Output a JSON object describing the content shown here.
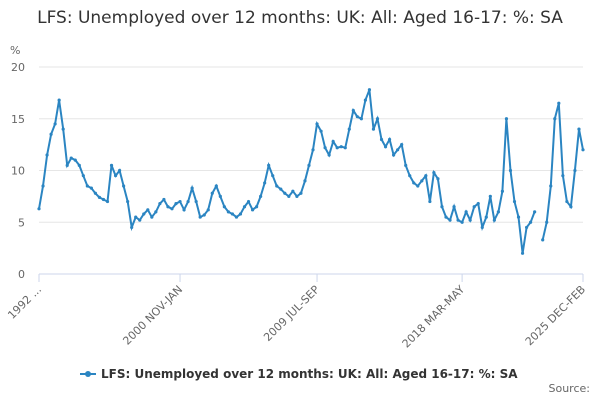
{
  "chart_data": {
    "type": "line",
    "title": "LFS: Unemployed over 12 months: UK: All: Aged 16-17: %: SA",
    "y_label": "%",
    "source": "Source:",
    "categories": [
      "1992 ...",
      null,
      null,
      null,
      null,
      null,
      null,
      null,
      null,
      null,
      null,
      null,
      null,
      null,
      null,
      null,
      null,
      null,
      null,
      null,
      null,
      null,
      null,
      null,
      null,
      null,
      null,
      null,
      null,
      null,
      null,
      null,
      null,
      null,
      null,
      "2000 NOV-JAN",
      null,
      null,
      null,
      null,
      null,
      null,
      null,
      null,
      null,
      null,
      null,
      null,
      null,
      null,
      null,
      null,
      null,
      null,
      null,
      null,
      null,
      null,
      null,
      null,
      null,
      null,
      null,
      null,
      null,
      null,
      null,
      null,
      null,
      "2009 JUL-SEP",
      null,
      null,
      null,
      null,
      null,
      null,
      null,
      null,
      null,
      null,
      null,
      null,
      null,
      null,
      null,
      null,
      null,
      null,
      null,
      null,
      null,
      null,
      null,
      null,
      null,
      null,
      null,
      null,
      null,
      null,
      null,
      null,
      null,
      null,
      null,
      "2018 MAR-MAY",
      null,
      null,
      null,
      null,
      null,
      null,
      null,
      null,
      null,
      null,
      null,
      null,
      null,
      null,
      null,
      null,
      null,
      null,
      null,
      null,
      null,
      null,
      null,
      null,
      null,
      null,
      null,
      null,
      null,
      "2025 DEC-FEB"
    ],
    "series": [
      {
        "name": "LFS: Unemployed over 12 months: UK: All: Aged 16-17: %: SA",
        "color": "#2b85c2",
        "values": [
          6.3,
          8.5,
          11.5,
          13.5,
          14.5,
          16.8,
          14,
          10.5,
          11.2,
          11,
          10.5,
          9.5,
          8.5,
          8.3,
          7.8,
          7.4,
          7.2,
          7,
          10.5,
          9.5,
          10,
          8.5,
          7,
          4.5,
          5.5,
          5.2,
          5.8,
          6.2,
          5.5,
          6,
          6.8,
          7.2,
          6.5,
          6.3,
          6.8,
          7,
          6.2,
          7,
          8.3,
          7,
          5.5,
          5.7,
          6.2,
          7.8,
          8.5,
          7.5,
          6.5,
          6,
          5.8,
          5.5,
          5.8,
          6.5,
          7,
          6.2,
          6.5,
          7.5,
          8.8,
          10.5,
          9.5,
          8.5,
          8.2,
          7.8,
          7.5,
          8,
          7.5,
          7.8,
          9,
          10.5,
          12,
          14.5,
          13.8,
          12.2,
          11.5,
          12.8,
          12.2,
          12.3,
          12.2,
          14,
          15.8,
          15.2,
          15,
          16.8,
          17.8,
          14,
          15,
          13,
          12.3,
          13,
          11.5,
          12,
          12.5,
          10.5,
          9.5,
          8.8,
          8.5,
          9,
          9.5,
          7,
          9.8,
          9.2,
          6.5,
          5.5,
          5.2,
          6.5,
          5.2,
          5,
          6,
          5.2,
          6.5,
          6.8,
          4.5,
          5.5,
          7.5,
          5.2,
          6,
          8,
          15,
          10,
          7,
          5.5,
          2,
          4.5,
          5,
          6,
          null,
          3.3,
          5,
          8.5,
          15,
          16.5,
          9.5,
          7,
          6.5,
          10,
          14,
          12
        ]
      }
    ],
    "ylim": [
      0,
      20
    ],
    "yticks": [
      0,
      5,
      10,
      15,
      20
    ],
    "grid": true
  }
}
